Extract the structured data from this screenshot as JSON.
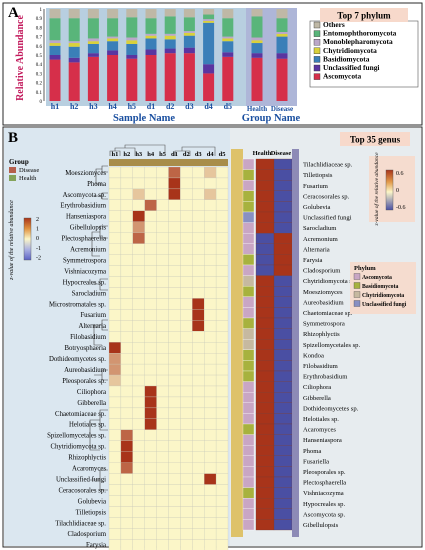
{
  "chart_data": [
    {
      "type": "bar",
      "panel_label": "A",
      "stacked": true,
      "ylabel": "Relative Abundance",
      "xlabel_left": "Sample Name",
      "xlabel_right": "Group Name",
      "legend_title": "Top 7 phylum",
      "legend_placement": "right",
      "ylim": [
        0,
        1
      ],
      "yticks": [
        "0",
        "0.1",
        "0.2",
        "0.3",
        "0.4",
        "0.5",
        "0.6",
        "0.7",
        "0.8",
        "0.9",
        "1"
      ],
      "sample_categories": [
        "h1",
        "h2",
        "h3",
        "h4",
        "h5",
        "d1",
        "d2",
        "d3",
        "d4",
        "d5"
      ],
      "group_categories": [
        "Health",
        "Disease"
      ],
      "series": [
        {
          "name": "Ascomycota",
          "color": "#d62f4a",
          "values": [
            0.45,
            0.42,
            0.48,
            0.5,
            0.46,
            0.5,
            0.52,
            0.52,
            0.3,
            0.48,
            0.47,
            0.46
          ]
        },
        {
          "name": "Unclassified fungi",
          "color": "#5a35a0",
          "values": [
            0.05,
            0.05,
            0.04,
            0.05,
            0.04,
            0.06,
            0.05,
            0.06,
            0.1,
            0.05,
            0.05,
            0.06
          ]
        },
        {
          "name": "Basidiomycota",
          "color": "#3a7fb8",
          "values": [
            0.1,
            0.12,
            0.1,
            0.1,
            0.12,
            0.12,
            0.1,
            0.13,
            0.45,
            0.12,
            0.11,
            0.18
          ]
        },
        {
          "name": "Chytridiomycota",
          "color": "#d9d13a",
          "values": [
            0.03,
            0.04,
            0.03,
            0.03,
            0.04,
            0.03,
            0.04,
            0.03,
            0.02,
            0.03,
            0.03,
            0.03
          ]
        },
        {
          "name": "Monoblepharomycota",
          "color": "#bba7c9",
          "values": [
            0.03,
            0.02,
            0.03,
            0.02,
            0.03,
            0.02,
            0.02,
            0.02,
            0.02,
            0.02,
            0.03,
            0.02
          ]
        },
        {
          "name": "Entomophthoromycota",
          "color": "#59b57a",
          "values": [
            0.24,
            0.25,
            0.22,
            0.2,
            0.22,
            0.17,
            0.19,
            0.15,
            0.05,
            0.2,
            0.23,
            0.15
          ]
        },
        {
          "name": "Others",
          "color": "#bfb8a6",
          "values": [
            0.1,
            0.1,
            0.1,
            0.1,
            0.09,
            0.1,
            0.08,
            0.09,
            0.06,
            0.1,
            0.08,
            0.1
          ]
        }
      ]
    },
    {
      "type": "heatmap",
      "panel_label": "B",
      "title": "Top 35 genus",
      "columns": [
        "h1",
        "h2",
        "h3",
        "h4",
        "h5",
        "d1",
        "d2",
        "d3",
        "d4",
        "d5"
      ],
      "rows": [
        "Moesziomyces",
        "Phoma",
        "Ascomycota sp.",
        "Erythrobasidium",
        "Hanseniaspora",
        "Gibellulopsis",
        "Plectosphaerella",
        "Acremonium",
        "Symmetrospora",
        "Vishniacozyma",
        "Hypocreales sp.",
        "Sarocladium",
        "Microstromatales sp.",
        "Fusarium",
        "Alternaria",
        "Filobasidium",
        "Botryosphaeria",
        "Dothideomycetes sp.",
        "Aureobasidium",
        "Pleosporales sp.",
        "Ciliophora",
        "Gibberella",
        "Chaetomiaceae sp.",
        "Helotiales sp.",
        "Spizellomycetales sp.",
        "Chytridiomycota sp.",
        "Rhizophlyctis",
        "Acaromyces",
        "Unclassified fungi",
        "Ceracosorales sp.",
        "Golubevia",
        "Tilletiopsis",
        "Tilachlidiaceae sp.",
        "Cladosporium",
        "Farysia"
      ],
      "values": [
        [
          0,
          0,
          0,
          0,
          0,
          1.5,
          0,
          0,
          0.5,
          0
        ],
        [
          0,
          0,
          0,
          0,
          0,
          2.5,
          0,
          0,
          0,
          0
        ],
        [
          0,
          0,
          0.5,
          0,
          0,
          2,
          0,
          0,
          0.5,
          0
        ],
        [
          0,
          0,
          0,
          1.5,
          0,
          0,
          0,
          0,
          0,
          0
        ],
        [
          0,
          0,
          2,
          0,
          0,
          0,
          0,
          0,
          0,
          0
        ],
        [
          0,
          0,
          1,
          0,
          0,
          0,
          0,
          0,
          0,
          0
        ],
        [
          0,
          0,
          1.5,
          0,
          0,
          0,
          0,
          0,
          0,
          0
        ],
        [
          0,
          0,
          0,
          0,
          0,
          0,
          0,
          0,
          0,
          0
        ],
        [
          0,
          0,
          0,
          0,
          0,
          0,
          0,
          0,
          0,
          0
        ],
        [
          0,
          0,
          0,
          0,
          0,
          0,
          0,
          0,
          0,
          0
        ],
        [
          0,
          0,
          0,
          0,
          0,
          0,
          0,
          0,
          0,
          0
        ],
        [
          0,
          0,
          0,
          0,
          0,
          0,
          0,
          0,
          0,
          0
        ],
        [
          0,
          0,
          0,
          0,
          0,
          0,
          0,
          2.5,
          0,
          0
        ],
        [
          0,
          0,
          0,
          0,
          0,
          0,
          0,
          2.5,
          0,
          0
        ],
        [
          0,
          0,
          0,
          0,
          0,
          0,
          0,
          2.5,
          0,
          0
        ],
        [
          0,
          0,
          0,
          0,
          0,
          0,
          0,
          0,
          0,
          0
        ],
        [
          2.5,
          0,
          0,
          0,
          0,
          0,
          0,
          0,
          0,
          0
        ],
        [
          1,
          0,
          0,
          0,
          0,
          0,
          0,
          0,
          0,
          0
        ],
        [
          1,
          0,
          0,
          0,
          0,
          0,
          0,
          0,
          0,
          0
        ],
        [
          0.5,
          0,
          0,
          0,
          0,
          0,
          0,
          0,
          0,
          0
        ],
        [
          0,
          0,
          0,
          2.5,
          0,
          0,
          0,
          0,
          0,
          0
        ],
        [
          0,
          0,
          0,
          2.5,
          0,
          0,
          0,
          0,
          0,
          0
        ],
        [
          0,
          0,
          0,
          2.5,
          0,
          0,
          0,
          0,
          0,
          0
        ],
        [
          0,
          0,
          0,
          2.5,
          0,
          0,
          0,
          0,
          0,
          0
        ],
        [
          0,
          1.5,
          0,
          0,
          0,
          0,
          0,
          0,
          0,
          0
        ],
        [
          0,
          2,
          0,
          0,
          0,
          0,
          0,
          0,
          0,
          0
        ],
        [
          0,
          2,
          0,
          0,
          0,
          0,
          0,
          0,
          0,
          0
        ],
        [
          0,
          1.5,
          0,
          0,
          0,
          0,
          0,
          0,
          0,
          0
        ],
        [
          0,
          0,
          0,
          0,
          0,
          0,
          0,
          0,
          2.5,
          0
        ],
        [
          0,
          0,
          0,
          0,
          0,
          0,
          0,
          0,
          0,
          0
        ],
        [
          0,
          0,
          0,
          0,
          0,
          0,
          0,
          0,
          0,
          0
        ],
        [
          0,
          0,
          0,
          0,
          0,
          0,
          0,
          0,
          0,
          0
        ],
        [
          0,
          0,
          0,
          0,
          0,
          0,
          0,
          0,
          0,
          0
        ],
        [
          0,
          0,
          0,
          0,
          0,
          0,
          0,
          0,
          0,
          0
        ],
        [
          0,
          0,
          0,
          0,
          0,
          0,
          0,
          0,
          0,
          0
        ]
      ],
      "color_scale": {
        "min": -2,
        "max": 2,
        "low": "#5b62c4",
        "mid": "#fbf6c8",
        "high": "#a8341a"
      },
      "group_legend_title": "Group",
      "group_legend": [
        {
          "name": "Disease",
          "color": "#b55f4c"
        },
        {
          "name": "Health",
          "color": "#84a35a"
        }
      ],
      "colorbar_label": "z-value of the relative abundance",
      "colorbar_ticks": [
        "2",
        "1",
        "0",
        "-1",
        "-2"
      ]
    },
    {
      "type": "heatmap",
      "panel_label": "",
      "columns": [
        "Health",
        "Disease"
      ],
      "rows": [
        "Tilachlidiaceae sp.",
        "Tilletiopsis",
        "Fusarium",
        "Ceracosorales sp.",
        "Golubevia",
        "Unclassified fungi",
        "Sarocladium",
        "Acremonium",
        "Alternaria",
        "Farysia",
        "Cladosporium",
        "Chytridiomycota sp.",
        "Moesziomyces",
        "Aureobasidium",
        "Chaetomiaceae sp.",
        "Symmetrospora",
        "Rhizophlyctis",
        "Spizellomycetales sp.",
        "Kondoa",
        "Filobasidium",
        "Erythrobasidium",
        "Ciliophora",
        "Gibberella",
        "Dothideomycetes sp.",
        "Helotiales sp.",
        "Acaromyces",
        "Hanseniaspora",
        "Phoma",
        "Fusariella",
        "Pleosporales sp.",
        "Plectosphaerella",
        "Vishniacozyma",
        "Hypocreales sp.",
        "Ascomycota sp.",
        "Gibellulopsis"
      ],
      "values": [
        [
          0.7,
          -0.7
        ],
        [
          0.7,
          -0.7
        ],
        [
          0.7,
          -0.7
        ],
        [
          0.7,
          -0.7
        ],
        [
          0.7,
          -0.7
        ],
        [
          0.7,
          -0.7
        ],
        [
          0.7,
          -0.7
        ],
        [
          -0.7,
          0.7
        ],
        [
          -0.7,
          0.7
        ],
        [
          -0.7,
          0.7
        ],
        [
          -0.7,
          0.7
        ],
        [
          0.7,
          -0.7
        ],
        [
          0.7,
          -0.7
        ],
        [
          0.7,
          -0.7
        ],
        [
          0.7,
          -0.7
        ],
        [
          0.7,
          -0.7
        ],
        [
          0.7,
          -0.7
        ],
        [
          0.7,
          -0.7
        ],
        [
          0.7,
          -0.7
        ],
        [
          0.7,
          -0.7
        ],
        [
          0.7,
          -0.7
        ],
        [
          0.7,
          -0.7
        ],
        [
          0.7,
          -0.7
        ],
        [
          0.7,
          -0.7
        ],
        [
          0.7,
          -0.7
        ],
        [
          0.7,
          -0.7
        ],
        [
          0.7,
          -0.7
        ],
        [
          0.7,
          -0.7
        ],
        [
          0.7,
          -0.7
        ],
        [
          0.7,
          -0.7
        ],
        [
          0.7,
          -0.7
        ],
        [
          0.7,
          -0.7
        ],
        [
          0.7,
          -0.7
        ],
        [
          0.7,
          -0.7
        ],
        [
          0.7,
          -0.7
        ]
      ],
      "row_phylum": [
        "Ascomycota",
        "Basidiomycota",
        "Ascomycota",
        "Basidiomycota",
        "Basidiomycota",
        "Unclassified fungi",
        "Ascomycota",
        "Ascomycota",
        "Ascomycota",
        "Basidiomycota",
        "Ascomycota",
        "Chytridiomycota",
        "Basidiomycota",
        "Ascomycota",
        "Ascomycota",
        "Basidiomycota",
        "Chytridiomycota",
        "Chytridiomycota",
        "Basidiomycota",
        "Basidiomycota",
        "Basidiomycota",
        "Ascomycota",
        "Ascomycota",
        "Ascomycota",
        "Ascomycota",
        "Basidiomycota",
        "Ascomycota",
        "Ascomycota",
        "Ascomycota",
        "Ascomycota",
        "Ascomycota",
        "Basidiomycota",
        "Ascomycota",
        "Ascomycota",
        "Ascomycota"
      ],
      "color_scale": {
        "min": -0.6,
        "max": 0.6,
        "low": "#4a4fa3",
        "mid": "#fbf6c8",
        "high": "#a8341a"
      },
      "colorbar_label": "z-value of the relative abundance",
      "colorbar_ticks": [
        "0.6",
        "0",
        "-0.6"
      ],
      "phylum_legend_title": "Phylum",
      "phylum_legend": [
        {
          "name": "Ascomycota",
          "color": "#c9a6c4"
        },
        {
          "name": "Basidiomycota",
          "color": "#a7b23e"
        },
        {
          "name": "Chytridiomycota",
          "color": "#c6b9a0"
        },
        {
          "name": "Unclassified fungi",
          "color": "#8890c2"
        }
      ]
    }
  ]
}
